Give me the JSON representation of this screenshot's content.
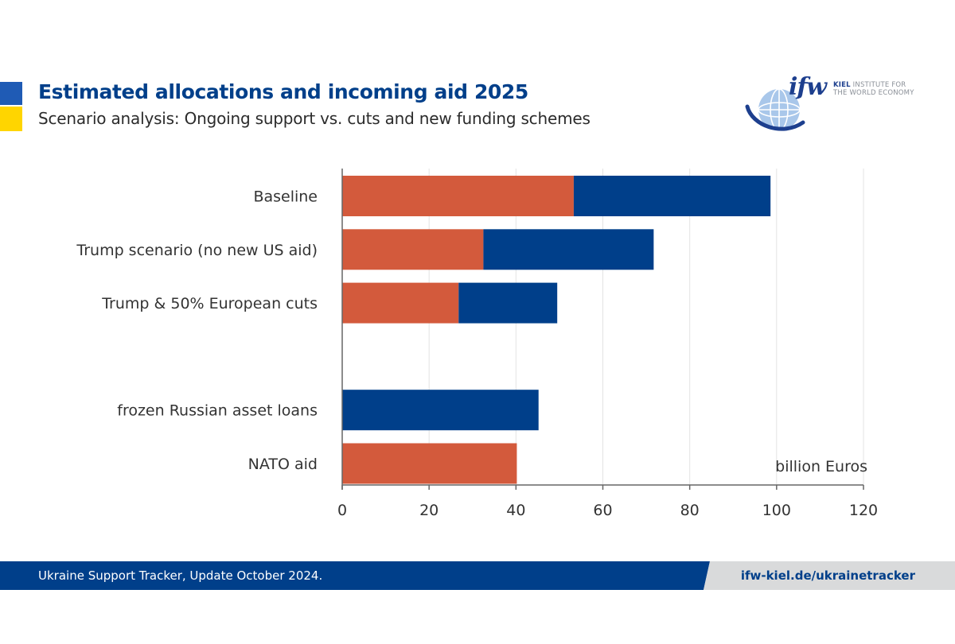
{
  "header": {
    "title": "Estimated allocations and incoming aid 2025",
    "subtitle": "Scenario analysis: Ongoing support vs. cuts and new funding schemes"
  },
  "logo": {
    "mark": "ifw",
    "line1_bold": "KIEL",
    "line1_rest": " INSTITUTE FOR",
    "line2": "THE WORLD ECONOMY"
  },
  "colors": {
    "orange": "#d35a3c",
    "blue": "#003f8a",
    "axis": "#666666",
    "grid": "#e3e3e3",
    "text": "#333333"
  },
  "chart_data": {
    "type": "bar",
    "orientation": "horizontal",
    "stacked": true,
    "categories": [
      "Baseline",
      "Trump scenario (no new US aid)",
      "Trump & 50% European cuts",
      "",
      "frozen Russian asset loans",
      "NATO aid"
    ],
    "series": [
      {
        "name": "orange segment",
        "color": "#d35a3c",
        "values": [
          53.3,
          32.5,
          26.8,
          null,
          0,
          40.2
        ]
      },
      {
        "name": "blue segment",
        "color": "#003f8a",
        "values": [
          45.3,
          39.2,
          22.7,
          null,
          45.2,
          0
        ]
      }
    ],
    "xlim": [
      0,
      120
    ],
    "xticks": [
      0,
      20,
      40,
      60,
      80,
      100,
      120
    ],
    "xlabel": "billion Euros",
    "title": "Estimated allocations and incoming aid 2025",
    "grid": true
  },
  "footer": {
    "source": "Ukraine Support Tracker, Update October 2024.",
    "link": "ifw-kiel.de/ukrainetracker"
  }
}
